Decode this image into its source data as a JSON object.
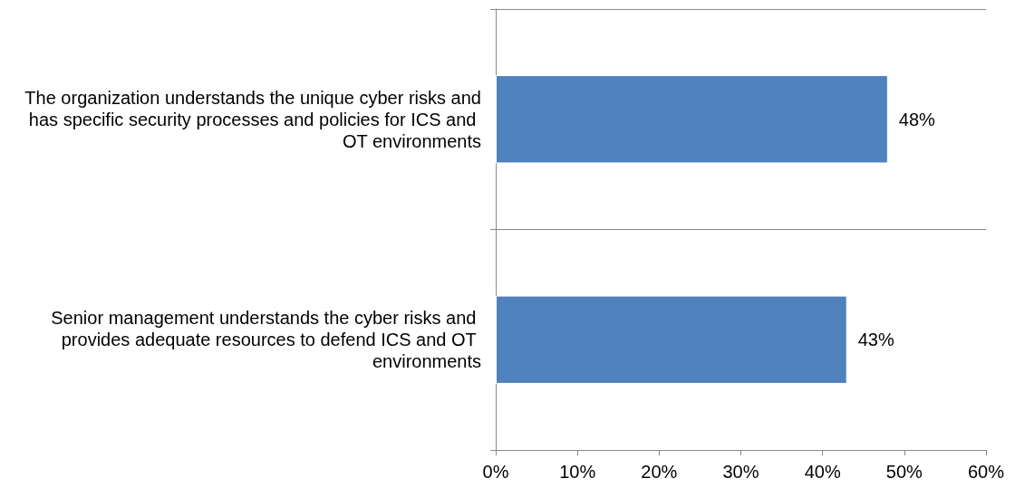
{
  "chart_data": {
    "type": "bar",
    "orientation": "horizontal",
    "categories": [
      "The organization understands the unique cyber risks and has specific security processes and policies for ICS and OT environments",
      "Senior management understands the cyber risks and provides adequate resources to defend ICS and OT environments"
    ],
    "values": [
      48,
      43
    ],
    "color": "#4f81bd",
    "value_labels": [
      "48%",
      "43%"
    ],
    "xlim": [
      0,
      60
    ],
    "xticks": [
      {
        "value": 0,
        "label": "0%"
      },
      {
        "value": 10,
        "label": "10%"
      },
      {
        "value": 20,
        "label": "20%"
      },
      {
        "value": 30,
        "label": "30%"
      },
      {
        "value": 40,
        "label": "40%"
      },
      {
        "value": 50,
        "label": "50%"
      },
      {
        "value": 60,
        "label": "60%"
      }
    ],
    "grid": "y"
  }
}
